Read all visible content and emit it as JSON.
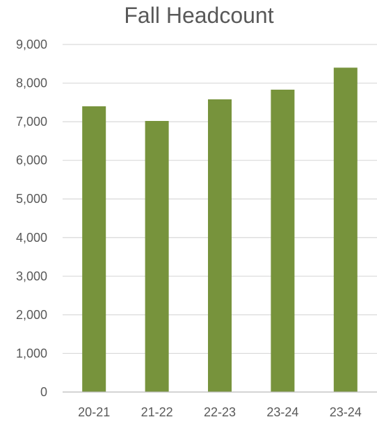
{
  "chart_data": {
    "type": "bar",
    "title": "Fall Headcount",
    "xlabel": "",
    "ylabel": "",
    "categories": [
      "20-21",
      "21-22",
      "22-23",
      "23-24",
      "23-24"
    ],
    "values": [
      7400,
      7020,
      7580,
      7830,
      8400
    ],
    "ylim": [
      0,
      9000
    ],
    "yticks": [
      "0",
      "1,000",
      "2,000",
      "3,000",
      "4,000",
      "5,000",
      "6,000",
      "7,000",
      "8,000",
      "9,000"
    ],
    "grid": true,
    "legend": "none",
    "bar_color": "#77933C",
    "grid_color": "#D9D9D9",
    "text_color": "#595959"
  }
}
